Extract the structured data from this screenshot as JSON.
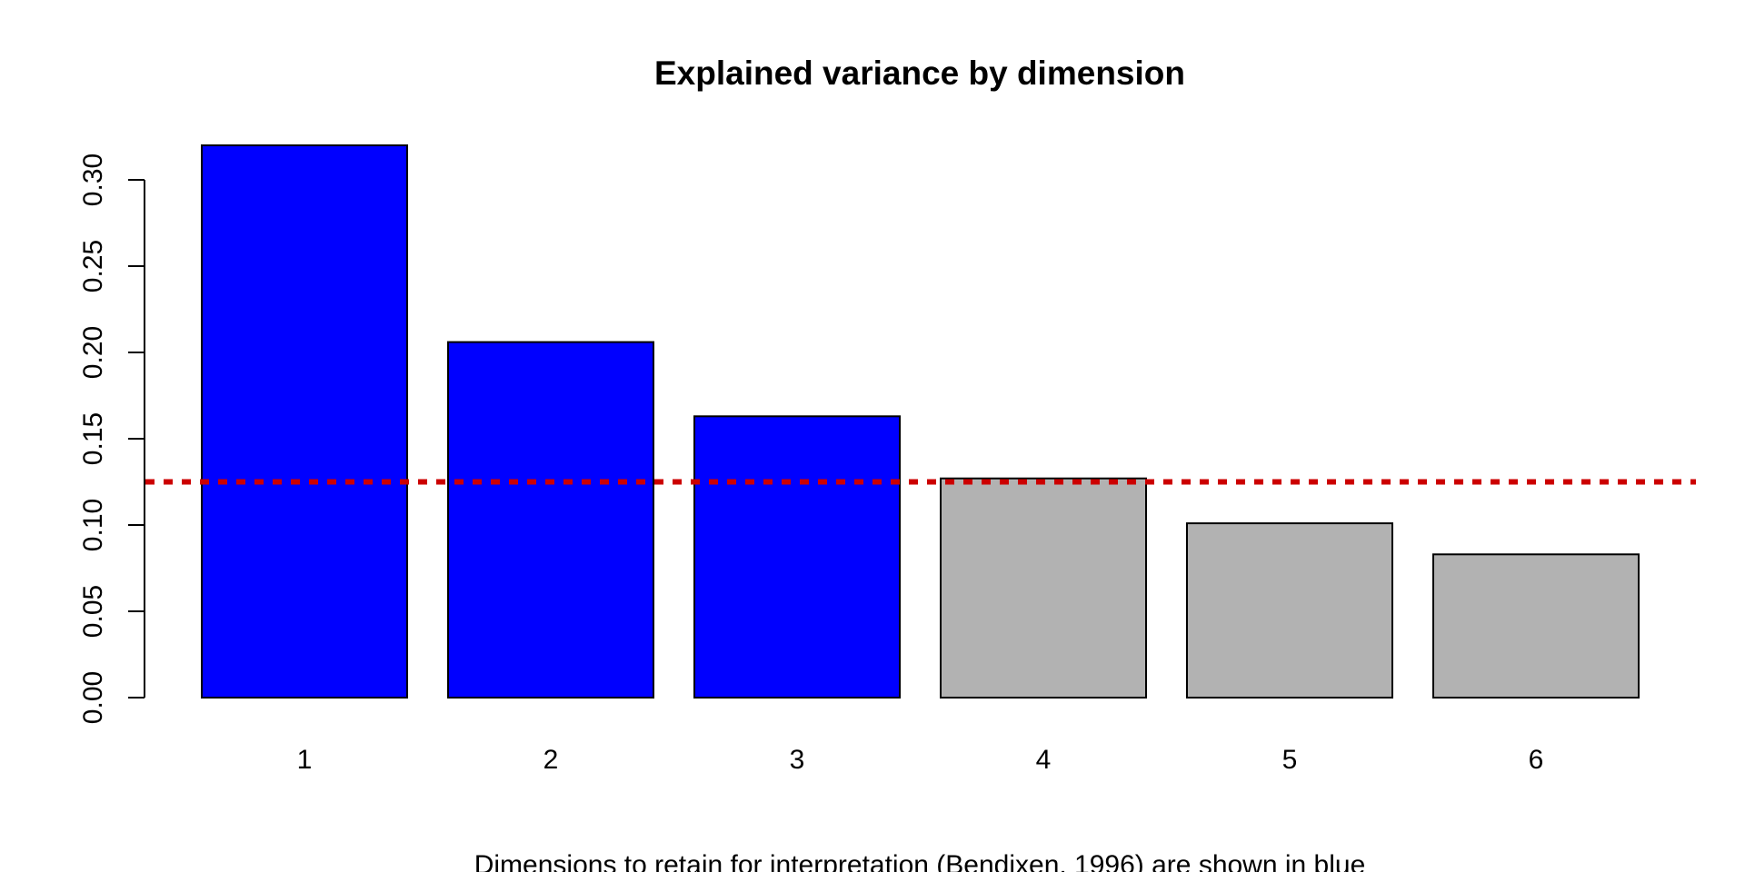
{
  "chart_data": {
    "type": "bar",
    "title": "Explained variance by dimension",
    "xlabel": "Dimensions to retain for interpretation (Bendixen, 1996) are shown in blue",
    "ylabel": "",
    "categories": [
      "1",
      "2",
      "3",
      "4",
      "5",
      "6"
    ],
    "values": [
      0.32,
      0.206,
      0.163,
      0.127,
      0.101,
      0.083
    ],
    "bar_colors": [
      "#0000ff",
      "#0000ff",
      "#0000ff",
      "#b2b2b2",
      "#b2b2b2",
      "#b2b2b2"
    ],
    "retained_color": "#0000ff",
    "other_color": "#b2b2b2",
    "ylim": [
      0,
      0.32
    ],
    "yticks": [
      "0.00",
      "0.05",
      "0.10",
      "0.15",
      "0.20",
      "0.25",
      "0.30"
    ],
    "reference_line": {
      "value": 0.125,
      "color": "#cc0000",
      "style": "dotted"
    },
    "grid": false,
    "legend": "none"
  }
}
